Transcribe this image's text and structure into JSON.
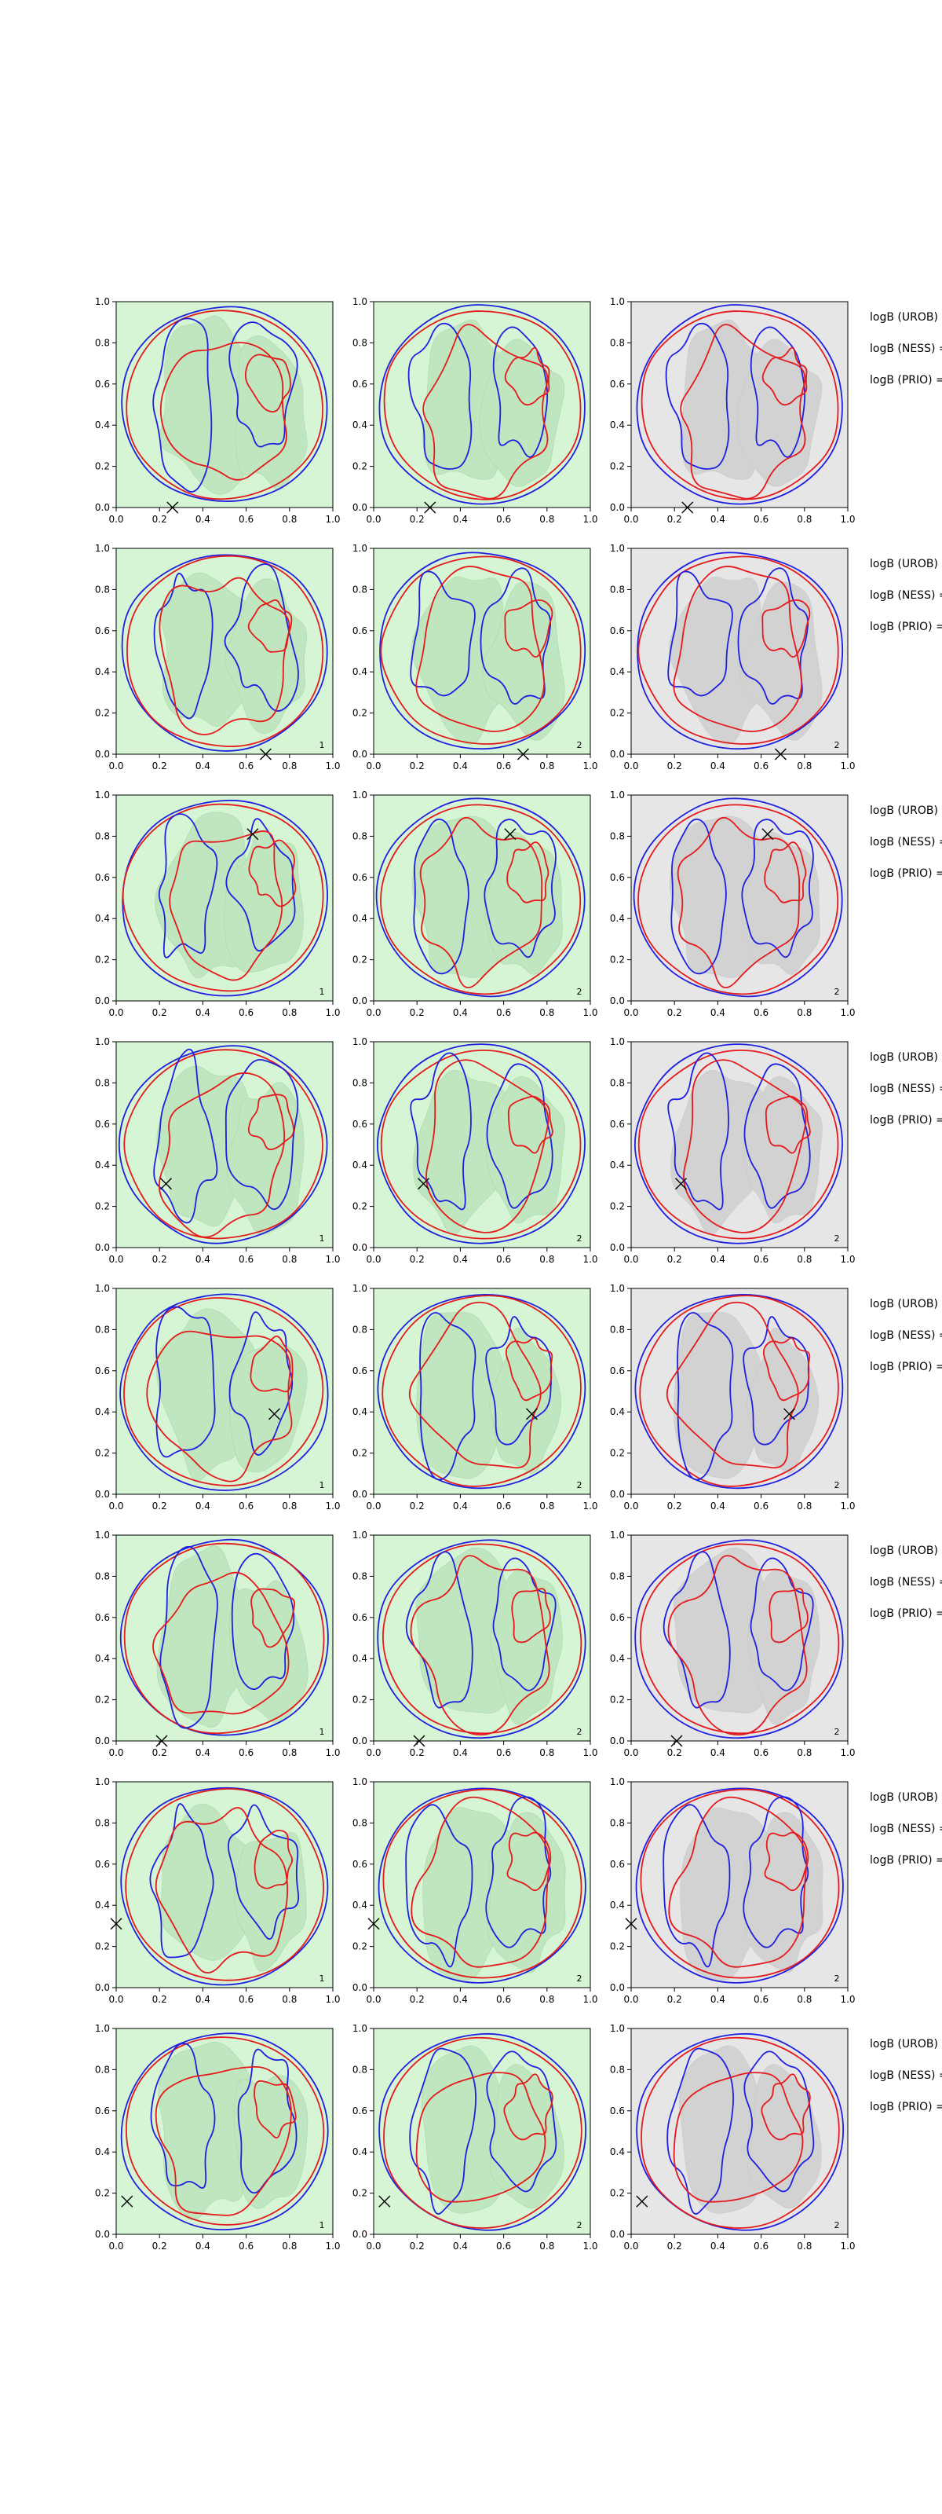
{
  "chart_data": {
    "type": "contour",
    "layout": {
      "rows": 8,
      "cols": 3
    },
    "xlim": [
      0,
      1
    ],
    "ylim": [
      0,
      1
    ],
    "x_ticks": [
      "0.0",
      "0.2",
      "0.4",
      "0.6",
      "0.8",
      "1.0"
    ],
    "y_ticks": [
      "0.0",
      "0.2",
      "0.4",
      "0.6",
      "0.8",
      "1.0"
    ],
    "contour_colors": {
      "red": "#e41a1c",
      "blue": "#1f1fe0",
      "fill_green_light": "#d5f5d5",
      "fill_green_mid": "#bfe6bf",
      "fill_grey_light": "#e6e6e6",
      "fill_grey_mid": "#d2d2d2",
      "marker": "#000000"
    },
    "panel_fill_style_by_column": [
      "green",
      "green",
      "grey"
    ],
    "row_labels": [
      "logB (UROB) =",
      "logB (NESS) =",
      "logB (PRIO) ="
    ],
    "rows": [
      {
        "marker": [
          0.26,
          0.0
        ],
        "corner_labels": [
          "",
          "",
          ""
        ]
      },
      {
        "marker": [
          0.69,
          0.0
        ],
        "corner_labels": [
          "1",
          "2",
          "2"
        ]
      },
      {
        "marker": [
          0.63,
          0.81
        ],
        "corner_labels": [
          "1",
          "2",
          "2"
        ]
      },
      {
        "marker": [
          0.23,
          0.31
        ],
        "corner_labels": [
          "1",
          "2",
          "2"
        ]
      },
      {
        "marker": [
          0.73,
          0.39
        ],
        "corner_labels": [
          "1",
          "2",
          "2"
        ]
      },
      {
        "marker": [
          0.21,
          0.0
        ],
        "corner_labels": [
          "1",
          "2",
          "2"
        ]
      },
      {
        "marker": [
          0.0,
          0.31
        ],
        "corner_labels": [
          "1",
          "2",
          "2"
        ]
      },
      {
        "marker": [
          0.05,
          0.16
        ],
        "corner_labels": [
          "1",
          "2",
          "2"
        ]
      }
    ]
  }
}
